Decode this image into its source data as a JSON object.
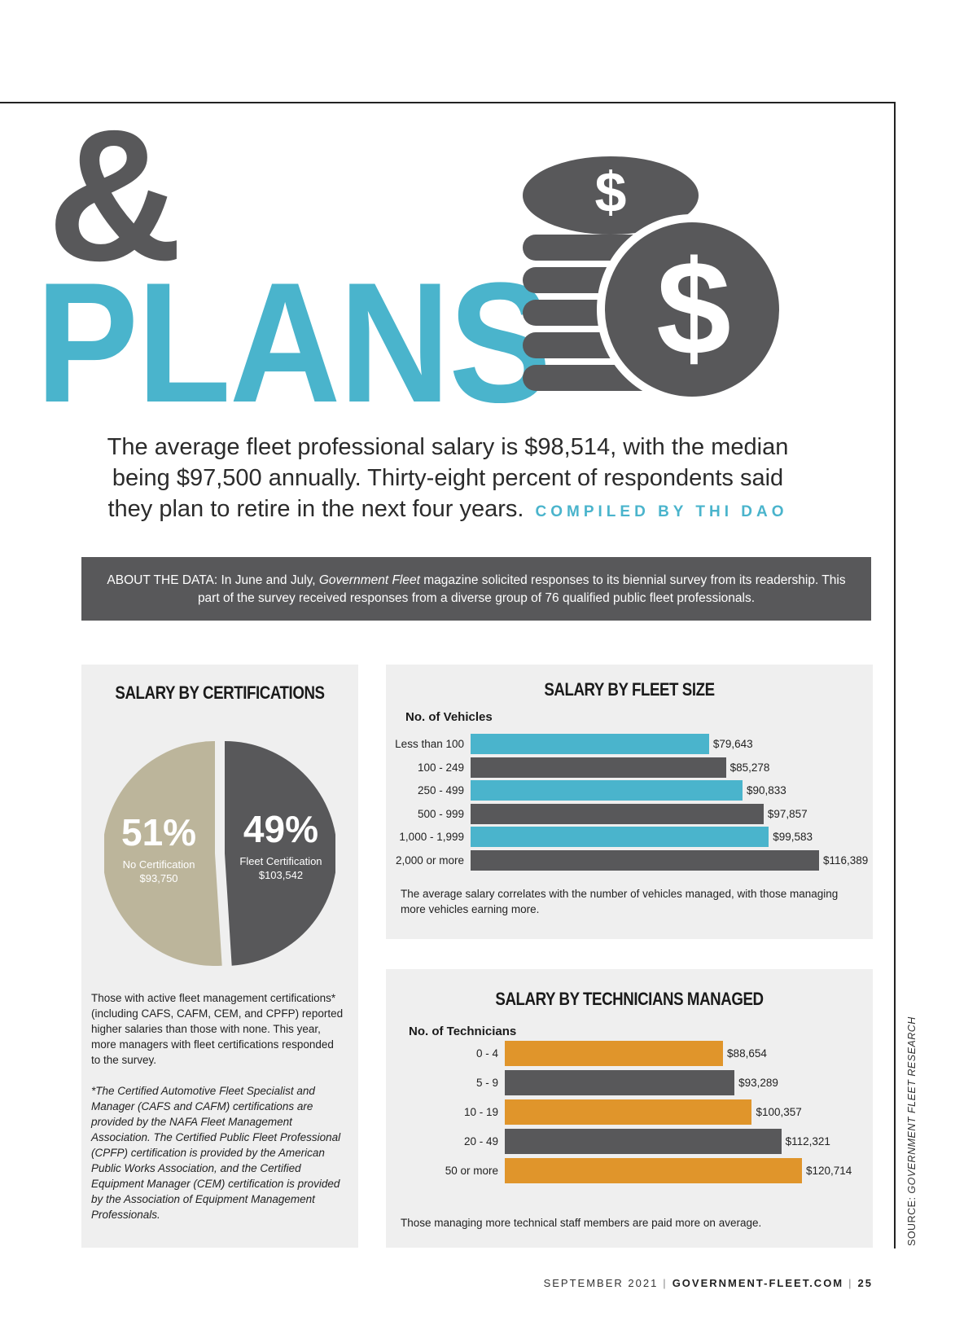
{
  "header": {
    "ampersand": "&",
    "title": "PLANS"
  },
  "intro": {
    "text": "The average fleet professional salary is $98,514, with the median being $97,500 annually. Thirty-eight percent of respondents said they plan to retire in the next four years.",
    "byline": "COMPILED BY THI DAO"
  },
  "about": {
    "prefix": "ABOUT THE DATA: In June and July, ",
    "publication": "Government Fleet",
    "suffix": " magazine solicited responses to its biennial survey from its readership. This part of the survey received responses from a diverse group of 76 qualified public fleet professionals."
  },
  "certifications": {
    "title": "SALARY BY CERTIFICATIONS",
    "text": "Those with active fleet management certifications* (including CAFS, CAFM, CEM, and CPFP) reported higher salaries than those with none. This year, more managers with fleet certifications responded to the survey.",
    "note": "*The Certified Automotive Fleet Specialist and Manager (CAFS and CAFM) certifications are provided by the NAFA Fleet Management Association. The Certified Public Fleet Professional (CPFP) certification is provided by the American Public Works Association, and the Certified Equipment Manager (CEM) certification is provided by the Association of Equipment Management Professionals."
  },
  "fleet_size": {
    "title": "SALARY BY FLEET SIZE",
    "axis_title": "No. of Vehicles",
    "caption": "The average salary correlates with the number of vehicles managed, with those managing more vehicles earning more."
  },
  "technicians": {
    "title": "SALARY BY TECHNICIANS MANAGED",
    "axis_title": "No. of Technicians",
    "caption": "Those managing more technical staff members are paid more on average."
  },
  "chart_data": [
    {
      "type": "pie",
      "title": "SALARY BY CERTIFICATIONS",
      "slices": [
        {
          "percent_label": "49%",
          "name": "Fleet Certification",
          "salary": "$103,542",
          "value": 49,
          "color": "#58585a"
        },
        {
          "percent_label": "51%",
          "name": "No Certification",
          "salary": "$93,750",
          "value": 51,
          "color": "#bcb59b"
        }
      ]
    },
    {
      "type": "bar",
      "orientation": "horizontal",
      "title": "SALARY BY FLEET SIZE",
      "ylabel": "No. of Vehicles",
      "categories": [
        "Less than 100",
        "100 - 249",
        "250 - 499",
        "500 - 999",
        "1,000 - 1,999",
        "2,000 or more"
      ],
      "values": [
        79643,
        85278,
        90833,
        97857,
        99583,
        116389
      ],
      "value_labels": [
        "$79,643",
        "$85,278",
        "$90,833",
        "$97,857",
        "$99,583",
        "$116,389"
      ],
      "colors": [
        "#4ab4cc",
        "#58585a",
        "#4ab4cc",
        "#58585a",
        "#4ab4cc",
        "#58585a"
      ]
    },
    {
      "type": "bar",
      "orientation": "horizontal",
      "title": "SALARY BY TECHNICIANS MANAGED",
      "ylabel": "No. of Technicians",
      "categories": [
        "0 - 4",
        "5 - 9",
        "10 - 19",
        "20 - 49",
        "50 or more"
      ],
      "values": [
        88654,
        93289,
        100357,
        112321,
        120714
      ],
      "value_labels": [
        "$88,654",
        "$93,289",
        "$100,357",
        "$112,321",
        "$120,714"
      ],
      "colors": [
        "#e0952b",
        "#58585a",
        "#e0952b",
        "#58585a",
        "#e0952b"
      ]
    }
  ],
  "sidebar": {
    "source_prefix": "SOURCE: ",
    "source_name": "GOVERNMENT FLEET RESEARCH"
  },
  "footer": {
    "date": "SEPTEMBER 2021",
    "site": "GOVERNMENT-FLEET.COM",
    "page": "25"
  },
  "colors": {
    "accent_blue": "#4ab4cc",
    "dark_gray": "#58585a",
    "orange": "#e0952b",
    "tan": "#bcb59b"
  }
}
